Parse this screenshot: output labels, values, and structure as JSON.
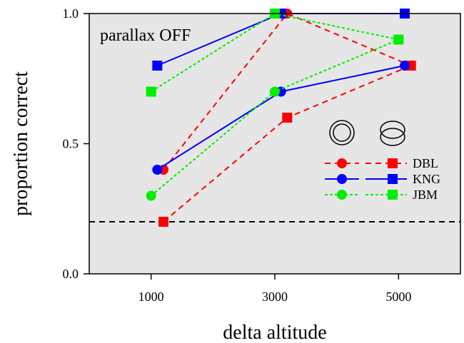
{
  "chart_data": {
    "type": "line",
    "title": "parallax OFF",
    "xlabel": "delta altitude",
    "ylabel": "proportion correct",
    "x_ticks": [
      "1000",
      "3000",
      "5000"
    ],
    "x_tick_values": [
      1000,
      3000,
      5000
    ],
    "y_ticks": [
      "0.0",
      "0.5",
      "1.0"
    ],
    "y_tick_values": [
      0,
      0.5,
      1.0
    ],
    "xlim": [
      0,
      6000
    ],
    "ylim": [
      0,
      1.0
    ],
    "chance_level": 0.2,
    "grid": false,
    "background_color": "#e6e6e6",
    "legend": {
      "placement": "center-right",
      "column_icons": [
        "concentric-circles-icon",
        "overlapping-circles-icon"
      ],
      "entries": [
        "DBL",
        "KNG",
        "JBM"
      ]
    },
    "series": [
      {
        "name": "DBL",
        "condition": "concentric",
        "marker": "circle",
        "color": "#ff0000",
        "dash": "dashed",
        "x": [
          1200,
          3200,
          5200
        ],
        "y": [
          0.4,
          1.0,
          0.8
        ]
      },
      {
        "name": "DBL",
        "condition": "overlapping",
        "marker": "square",
        "color": "#ff0000",
        "dash": "dashed",
        "x": [
          1200,
          3200,
          5200
        ],
        "y": [
          0.2,
          0.6,
          0.8
        ]
      },
      {
        "name": "KNG",
        "condition": "concentric",
        "marker": "circle",
        "color": "#0000ff",
        "dash": "solid",
        "x": [
          1100,
          3100,
          5100
        ],
        "y": [
          0.4,
          0.7,
          0.8
        ]
      },
      {
        "name": "KNG",
        "condition": "overlapping",
        "marker": "square",
        "color": "#0000ff",
        "dash": "solid",
        "x": [
          1100,
          3100,
          5100
        ],
        "y": [
          0.8,
          1.0,
          1.0
        ]
      },
      {
        "name": "JBM",
        "condition": "concentric",
        "marker": "circle",
        "color": "#00ee00",
        "dash": "dotted",
        "x": [
          1000,
          3000,
          5000
        ],
        "y": [
          0.3,
          0.7,
          0.9
        ]
      },
      {
        "name": "JBM",
        "condition": "overlapping",
        "marker": "square",
        "color": "#00ee00",
        "dash": "dotted",
        "x": [
          1000,
          3000,
          5000
        ],
        "y": [
          0.7,
          1.0,
          0.9
        ]
      }
    ]
  }
}
